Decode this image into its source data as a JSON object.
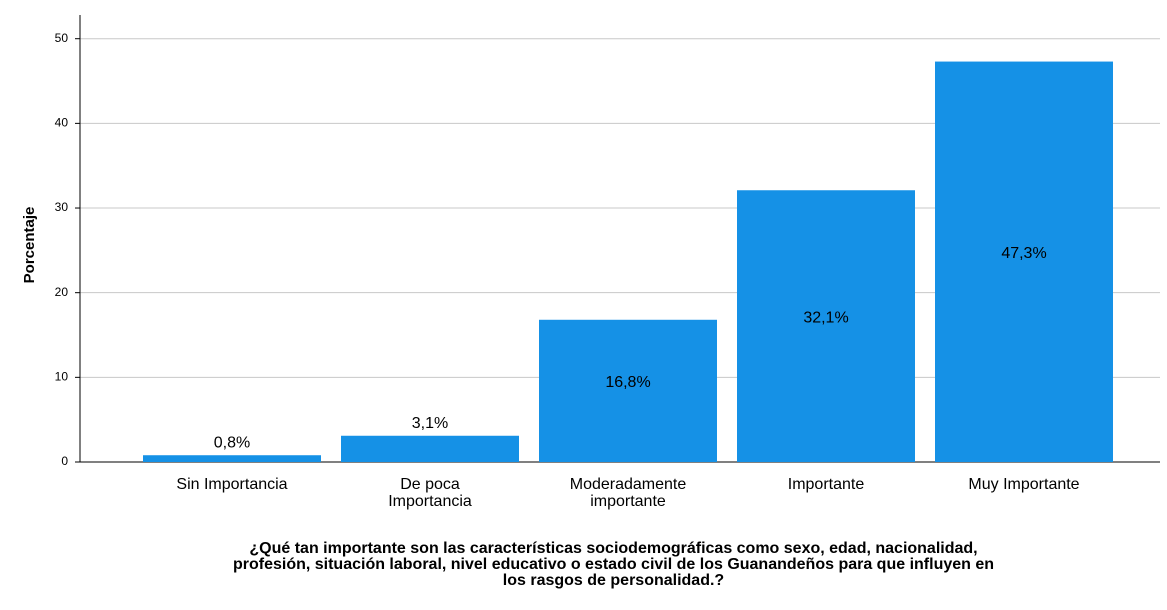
{
  "chart_data": {
    "type": "bar",
    "y_label": "Porcentaje",
    "x_label": "¿Qué tan importante son las características sociodemográficas como sexo, edad, nacionalidad,\nprofesión, situación laboral, nivel educativo o estado civil de los Guanandeños para que influyen en\nlos rasgos de personalidad.?",
    "categories": [
      "Sin Importancia",
      "De poca\nImportancia",
      "Moderadamente\nimportante",
      "Importante",
      "Muy Importante"
    ],
    "values": [
      0.8,
      3.1,
      16.8,
      32.1,
      47.3
    ],
    "value_labels": [
      "0,8%",
      "3,1%",
      "16,8%",
      "32,1%",
      "47,3%"
    ],
    "color": "#1591e6",
    "ylim": [
      0,
      52.8
    ],
    "yticks": [
      0,
      10,
      20,
      30,
      40,
      50
    ],
    "grid": true
  }
}
